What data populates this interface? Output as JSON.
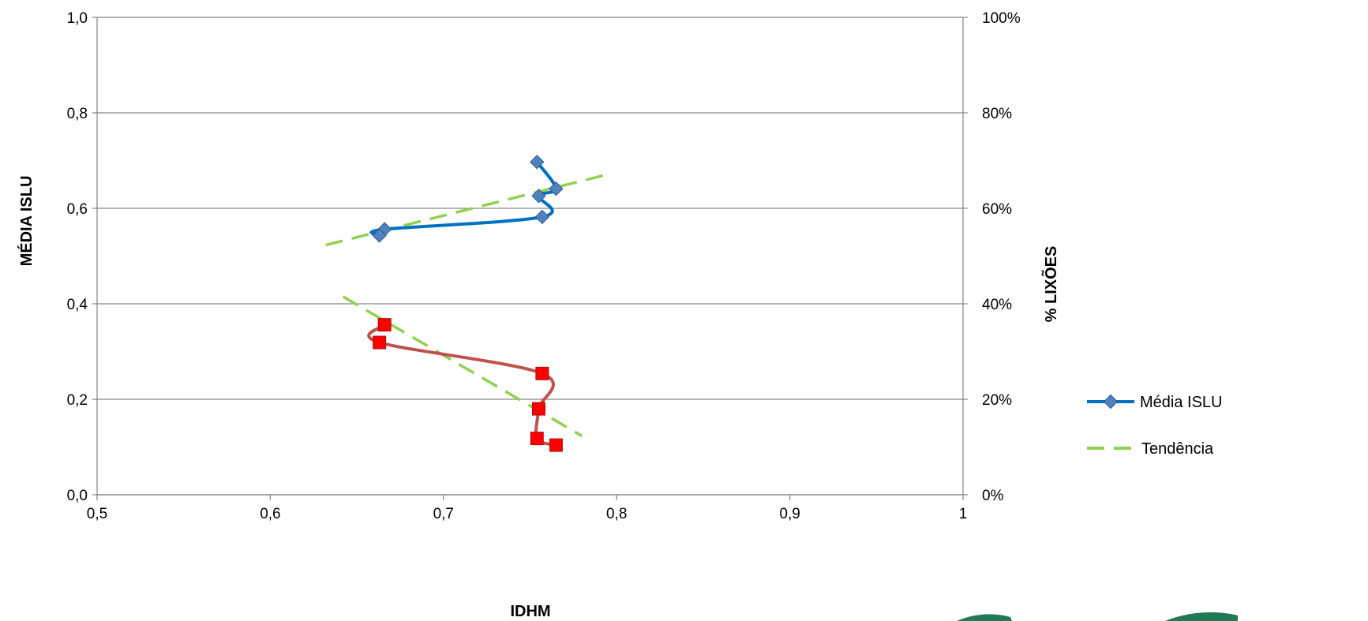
{
  "chart_data": {
    "type": "line",
    "title": "",
    "xlabel": "IDHM",
    "ylabel": "MÉDIA ISLU",
    "y2label": "% LIXÕES",
    "xlim": [
      0.5,
      1.0
    ],
    "ylim": [
      0.0,
      1.0
    ],
    "y2lim": [
      0,
      100
    ],
    "x_ticks": [
      "0,5",
      "0,6",
      "0,7",
      "0,8",
      "0,9",
      "1"
    ],
    "y_ticks": [
      "0,0",
      "0,2",
      "0,4",
      "0,6",
      "0,8",
      "1,0"
    ],
    "y2_ticks": [
      "0%",
      "20%",
      "40%",
      "60%",
      "80%",
      "100%"
    ],
    "grid": "horizontal",
    "legend_position": "right",
    "colors": {
      "islu_line": "#0070C0",
      "islu_marker": "#4F81BD",
      "lixoes_line": "#C0504D",
      "lixoes_marker": "#FF0000",
      "trend": "#92D050",
      "axis": "#868686",
      "grid": "#868686"
    },
    "series": [
      {
        "name": "Média ISLU",
        "axis": "left",
        "marker": "diamond",
        "x": [
          0.754,
          0.765,
          0.755,
          0.757,
          0.666,
          0.663
        ],
        "y": [
          0.697,
          0.641,
          0.626,
          0.582,
          0.556,
          0.543
        ]
      },
      {
        "axis": "right",
        "marker": "square",
        "x": [
          0.666,
          0.663,
          0.757,
          0.755,
          0.754,
          0.765
        ],
        "y": [
          35.6,
          31.9,
          25.4,
          18.0,
          11.8,
          10.4
        ]
      },
      {
        "name": "Tendência",
        "axis": "left",
        "style": "dashed",
        "x": [
          0.632,
          0.797
        ],
        "y": [
          0.523,
          0.673
        ]
      },
      {
        "axis": "right",
        "style": "dashed",
        "x": [
          0.642,
          0.78
        ],
        "y": [
          41.5,
          12.3
        ]
      }
    ]
  }
}
